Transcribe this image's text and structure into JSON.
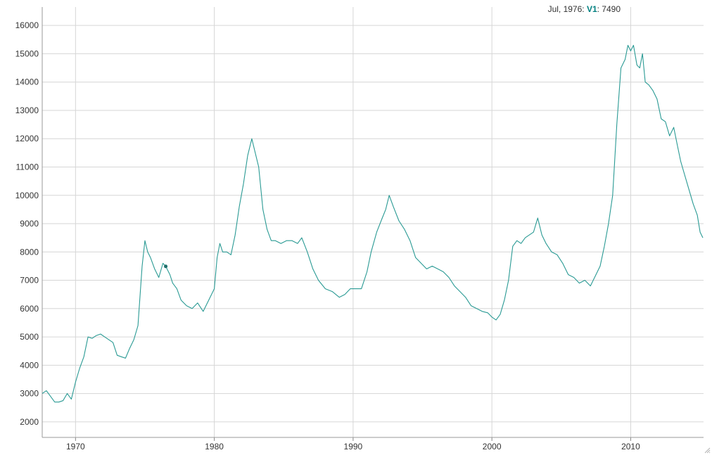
{
  "chart_data": {
    "type": "line",
    "title": "",
    "xlabel": "",
    "ylabel": "",
    "xlim": [
      1967.6,
      2015.25
    ],
    "ylim": [
      1450,
      16650
    ],
    "x_ticks": [
      1970,
      1980,
      1990,
      2000,
      2010
    ],
    "y_ticks": [
      2000,
      3000,
      4000,
      5000,
      6000,
      7000,
      8000,
      9000,
      10000,
      11000,
      12000,
      13000,
      14000,
      15000,
      16000
    ],
    "grid": true,
    "color": "#2a9a94",
    "highlight": {
      "x": 1976.5,
      "y": 7490,
      "label": "Jul, 1976",
      "series": "V1",
      "value": "7490"
    },
    "series": [
      {
        "name": "V1",
        "x": [
          1967.6,
          1967.9,
          1968.2,
          1968.5,
          1968.8,
          1969.1,
          1969.4,
          1969.7,
          1970.0,
          1970.3,
          1970.6,
          1970.9,
          1971.2,
          1971.5,
          1971.8,
          1972.1,
          1972.4,
          1972.7,
          1973.0,
          1973.3,
          1973.6,
          1973.9,
          1974.2,
          1974.5,
          1974.8,
          1975.0,
          1975.2,
          1975.4,
          1975.7,
          1976.0,
          1976.3,
          1976.5,
          1976.8,
          1977.0,
          1977.3,
          1977.6,
          1978.0,
          1978.4,
          1978.8,
          1979.2,
          1979.6,
          1980.0,
          1980.2,
          1980.4,
          1980.6,
          1980.9,
          1981.2,
          1981.5,
          1981.8,
          1982.1,
          1982.4,
          1982.7,
          1982.95,
          1983.2,
          1983.5,
          1983.8,
          1984.1,
          1984.4,
          1984.8,
          1985.2,
          1985.6,
          1986.0,
          1986.3,
          1986.7,
          1987.1,
          1987.5,
          1988.0,
          1988.5,
          1989.0,
          1989.4,
          1989.8,
          1990.2,
          1990.6,
          1991.0,
          1991.3,
          1991.7,
          1992.1,
          1992.35,
          1992.6,
          1992.9,
          1993.3,
          1993.7,
          1994.1,
          1994.5,
          1994.9,
          1995.3,
          1995.7,
          1996.1,
          1996.5,
          1996.9,
          1997.3,
          1997.7,
          1998.1,
          1998.5,
          1998.9,
          1999.3,
          1999.7,
          2000.0,
          2000.3,
          2000.6,
          2000.9,
          2001.2,
          2001.5,
          2001.8,
          2002.1,
          2002.4,
          2002.7,
          2003.0,
          2003.3,
          2003.6,
          2003.9,
          2004.3,
          2004.7,
          2005.1,
          2005.5,
          2005.9,
          2006.3,
          2006.7,
          2007.1,
          2007.5,
          2007.8,
          2008.1,
          2008.4,
          2008.7,
          2009.0,
          2009.3,
          2009.6,
          2009.8,
          2010.0,
          2010.2,
          2010.45,
          2010.65,
          2010.85,
          2011.05,
          2011.3,
          2011.6,
          2011.9,
          2012.2,
          2012.5,
          2012.8,
          2013.1,
          2013.35,
          2013.6,
          2013.9,
          2014.2,
          2014.5,
          2014.8,
          2015.0,
          2015.2
        ],
        "y": [
          3000,
          3100,
          2900,
          2700,
          2700,
          2750,
          3000,
          2800,
          3400,
          3900,
          4300,
          5000,
          4950,
          5050,
          5100,
          5000,
          4900,
          4800,
          4350,
          4300,
          4250,
          4600,
          4900,
          5400,
          7500,
          8400,
          8000,
          7800,
          7400,
          7100,
          7600,
          7490,
          7200,
          6900,
          6700,
          6300,
          6100,
          6000,
          6200,
          5900,
          6300,
          6700,
          7800,
          8300,
          8000,
          8000,
          7900,
          8600,
          9600,
          10400,
          11400,
          12000,
          11500,
          11000,
          9500,
          8800,
          8400,
          8400,
          8300,
          8400,
          8400,
          8300,
          8500,
          8000,
          7400,
          7000,
          6700,
          6600,
          6400,
          6500,
          6700,
          6700,
          6700,
          7300,
          8000,
          8700,
          9200,
          9500,
          10000,
          9600,
          9100,
          8800,
          8400,
          7800,
          7600,
          7400,
          7500,
          7400,
          7300,
          7100,
          6800,
          6600,
          6400,
          6100,
          6000,
          5900,
          5850,
          5700,
          5600,
          5800,
          6300,
          7000,
          8200,
          8400,
          8300,
          8500,
          8600,
          8700,
          9200,
          8600,
          8300,
          8000,
          7900,
          7600,
          7200,
          7100,
          6900,
          7000,
          6800,
          7200,
          7500,
          8200,
          9000,
          10000,
          12500,
          14500,
          14800,
          15300,
          15100,
          15300,
          14600,
          14500,
          15000,
          14000,
          13900,
          13700,
          13400,
          12700,
          12600,
          12100,
          12400,
          11800,
          11200,
          10700,
          10200,
          9700,
          9300,
          8700,
          8500
        ]
      }
    ]
  }
}
